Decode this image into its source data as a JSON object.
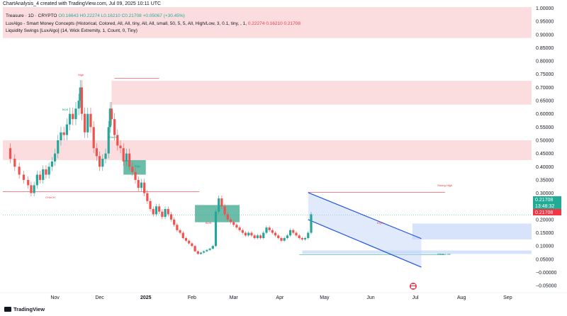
{
  "caption": "ChartAnalysis_4 created with TradingView.com, Jul 09, 2025 10:11 UTC",
  "legend": {
    "symbol": "Treasure · 1D · CRYPTO",
    "ohlc_values": "O0.16643 H0.22274 L0.16210 C0.21708 +0.05067 (+30.45%)",
    "indicator1": "LuxAlgo - Smart Money Concepts (Historical, Colored, All, All, tiny, All, All, small, 50, 5, 5, All, High/Low, 3, 0.1, tiny, , 1,",
    "indicator1_values": "0.22274 0.16210 0.21708",
    "indicator2": "Liquidity Swings [LuxAlgo] (14, Wick Extremity, 1, Count, 0, Tiny)"
  },
  "footer": {
    "brand": "TradingView"
  },
  "price_labels": {
    "last_price": "0.21708",
    "countdown": "13:48:32",
    "close_marker": "0.21708"
  },
  "colors": {
    "up": "#26a69a",
    "down": "#ef5350",
    "supply_zone": "#f8bbbf",
    "demand_zone": "#3aa58b",
    "channel": "#1e53e5",
    "channel_fill": "#bcd0f7",
    "badge_green": "#22ab94",
    "badge_red": "#f23645"
  },
  "icons": {
    "calendar": "event-calendar-icon",
    "logo": "tradingview-logo-icon"
  },
  "annotations": [
    {
      "text": "High",
      "color": "#f23645"
    },
    {
      "text": "Strong High",
      "color": "#f23645"
    },
    {
      "text": "Weak Low",
      "color": "#089981"
    },
    {
      "text": "CHoCH",
      "color": "#f23645"
    },
    {
      "text": "BOS",
      "color": "#089981"
    },
    {
      "text": "CHoCH",
      "color": "#089981"
    },
    {
      "text": "EQH",
      "color": "#f23645"
    },
    {
      "text": "EQL",
      "color": "#089981"
    },
    {
      "text": "BOS",
      "color": "#f23645"
    }
  ],
  "chart_data": {
    "type": "candlestick",
    "x_tick_labels": [
      "Nov",
      "Dec",
      "2025",
      "Feb",
      "Mar",
      "Apr",
      "May",
      "Jun",
      "Jul",
      "Aug",
      "Sep"
    ],
    "y_tick_labels": [
      "1.00000",
      "0.95000",
      "0.90000",
      "0.85000",
      "0.80000",
      "0.75000",
      "0.70000",
      "0.65000",
      "0.60000",
      "0.55000",
      "0.50000",
      "0.45000",
      "0.40000",
      "0.35000",
      "0.30000",
      "0.25000",
      "0.20000",
      "0.15000",
      "0.10000",
      "0.05000",
      "−0.00000",
      "−0.05000"
    ],
    "y_ticks": [
      1.0,
      0.95,
      0.9,
      0.85,
      0.8,
      0.75,
      0.7,
      0.65,
      0.6,
      0.55,
      0.5,
      0.45,
      0.4,
      0.35,
      0.3,
      0.25,
      0.2,
      0.15,
      0.1,
      0.05,
      0.0,
      -0.05
    ],
    "ylim": [
      -0.063,
      1.004
    ],
    "x_tick_days": [
      0,
      30,
      61,
      92,
      120,
      151,
      181,
      212,
      242,
      273,
      304
    ],
    "x_range_days": [
      -35,
      320
    ],
    "zones": [
      {
        "kind": "supply",
        "day_start": -35,
        "day_end": 320,
        "y_low": 0.887,
        "y_high": 1.004
      },
      {
        "kind": "supply",
        "day_start": 38,
        "day_end": 320,
        "y_low": 0.635,
        "y_high": 0.725
      },
      {
        "kind": "supply",
        "day_start": -35,
        "day_end": 320,
        "y_low": 0.425,
        "y_high": 0.5
      },
      {
        "kind": "demand",
        "day_start": 46,
        "day_end": 61,
        "y_low": 0.37,
        "y_high": 0.425
      },
      {
        "kind": "demand",
        "day_start": 94,
        "day_end": 124,
        "y_low": 0.19,
        "y_high": 0.255
      },
      {
        "kind": "demand_blue",
        "day_start": 240,
        "day_end": 320,
        "y_low": 0.125,
        "y_high": 0.185
      },
      {
        "kind": "demand_blue",
        "day_start": 166,
        "day_end": 320,
        "y_low": 0.07,
        "y_high": 0.083
      }
    ],
    "levels": [
      {
        "label": "High",
        "day_start": 40,
        "day_end": 70,
        "y": 0.735
      },
      {
        "label": "Strong High",
        "day_start": 170,
        "day_end": 262,
        "y": 0.303
      },
      {
        "label": "Weak Low",
        "day_start": 164,
        "day_end": 262,
        "y": 0.067
      },
      {
        "label": "CHoCH",
        "day_start": -35,
        "day_end": 97,
        "y": 0.305
      }
    ],
    "channel": {
      "upper": [
        [
          170,
          0.302
        ],
        [
          246,
          0.128
        ]
      ],
      "lower": [
        [
          170,
          0.2
        ],
        [
          246,
          0.02
        ]
      ]
    },
    "close_series": [
      [
        -33,
        0.47
      ],
      [
        -30,
        0.43
      ],
      [
        -27,
        0.4
      ],
      [
        -24,
        0.37
      ],
      [
        -21,
        0.35
      ],
      [
        -18,
        0.33
      ],
      [
        -16,
        0.3
      ],
      [
        -14,
        0.33
      ],
      [
        -12,
        0.37
      ],
      [
        -10,
        0.35
      ],
      [
        -8,
        0.39
      ],
      [
        -6,
        0.37
      ],
      [
        -4,
        0.4
      ],
      [
        -2,
        0.42
      ],
      [
        0,
        0.45
      ],
      [
        2,
        0.5
      ],
      [
        4,
        0.53
      ],
      [
        6,
        0.52
      ],
      [
        8,
        0.56
      ],
      [
        10,
        0.6
      ],
      [
        12,
        0.58
      ],
      [
        14,
        0.62
      ],
      [
        16,
        0.65
      ],
      [
        17,
        0.7
      ],
      [
        18,
        0.6
      ],
      [
        20,
        0.53
      ],
      [
        22,
        0.6
      ],
      [
        24,
        0.55
      ],
      [
        26,
        0.47
      ],
      [
        28,
        0.44
      ],
      [
        30,
        0.4
      ],
      [
        32,
        0.43
      ],
      [
        34,
        0.45
      ],
      [
        36,
        0.55
      ],
      [
        37,
        0.62
      ],
      [
        38,
        0.58
      ],
      [
        40,
        0.52
      ],
      [
        42,
        0.48
      ],
      [
        44,
        0.47
      ],
      [
        46,
        0.42
      ],
      [
        48,
        0.45
      ],
      [
        50,
        0.4
      ],
      [
        52,
        0.38
      ],
      [
        54,
        0.35
      ],
      [
        56,
        0.32
      ],
      [
        58,
        0.34
      ],
      [
        60,
        0.3
      ],
      [
        62,
        0.27
      ],
      [
        64,
        0.24
      ],
      [
        66,
        0.22
      ],
      [
        68,
        0.25
      ],
      [
        70,
        0.23
      ],
      [
        72,
        0.21
      ],
      [
        74,
        0.24
      ],
      [
        76,
        0.22
      ],
      [
        78,
        0.2
      ],
      [
        80,
        0.18
      ],
      [
        82,
        0.16
      ],
      [
        84,
        0.15
      ],
      [
        86,
        0.13
      ],
      [
        88,
        0.12
      ],
      [
        90,
        0.11
      ],
      [
        92,
        0.1
      ],
      [
        94,
        0.08
      ],
      [
        96,
        0.07
      ],
      [
        98,
        0.075
      ],
      [
        100,
        0.08
      ],
      [
        102,
        0.085
      ],
      [
        104,
        0.09
      ],
      [
        106,
        0.1
      ],
      [
        108,
        0.23
      ],
      [
        110,
        0.28
      ],
      [
        112,
        0.25
      ],
      [
        114,
        0.22
      ],
      [
        116,
        0.2
      ],
      [
        118,
        0.19
      ],
      [
        120,
        0.18
      ],
      [
        122,
        0.17
      ],
      [
        124,
        0.16
      ],
      [
        126,
        0.15
      ],
      [
        128,
        0.14
      ],
      [
        130,
        0.15
      ],
      [
        132,
        0.14
      ],
      [
        134,
        0.13
      ],
      [
        136,
        0.14
      ],
      [
        138,
        0.13
      ],
      [
        140,
        0.15
      ],
      [
        142,
        0.17
      ],
      [
        144,
        0.16
      ],
      [
        146,
        0.15
      ],
      [
        148,
        0.14
      ],
      [
        150,
        0.13
      ],
      [
        152,
        0.12
      ],
      [
        154,
        0.13
      ],
      [
        156,
        0.14
      ],
      [
        158,
        0.16
      ],
      [
        160,
        0.15
      ],
      [
        162,
        0.14
      ],
      [
        164,
        0.13
      ],
      [
        166,
        0.125
      ],
      [
        168,
        0.13
      ],
      [
        170,
        0.15
      ],
      [
        172,
        0.22
      ]
    ]
  }
}
